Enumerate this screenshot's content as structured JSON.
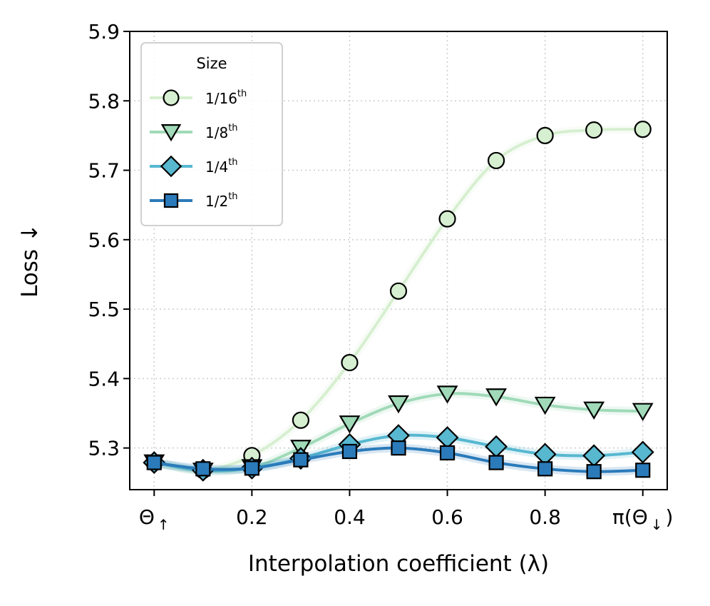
{
  "chart_data": {
    "type": "line",
    "title": "",
    "xlabel": "Interpolation coefficient (λ)",
    "ylabel": "Loss ↓",
    "xlim": [
      -0.05,
      1.05
    ],
    "ylim": [
      5.24,
      5.9
    ],
    "grid": true,
    "x": [
      0.0,
      0.1,
      0.2,
      0.3,
      0.4,
      0.5,
      0.6,
      0.7,
      0.8,
      0.9,
      1.0
    ],
    "xticks": [
      0.0,
      0.2,
      0.4,
      0.6,
      0.8,
      1.0
    ],
    "xtick_labels": [
      "Θ",
      "0.2",
      "0.4",
      "0.6",
      "0.8",
      "π(Θ"
    ],
    "xtick_subscripts": [
      "↑",
      "",
      "",
      "",
      "",
      "↓"
    ],
    "xtick_suffixes": [
      "",
      "",
      "",
      "",
      "",
      ")"
    ],
    "yticks": [
      5.3,
      5.4,
      5.5,
      5.6,
      5.7,
      5.8,
      5.9
    ],
    "ytick_labels": [
      "5.3",
      "5.4",
      "5.5",
      "5.6",
      "5.7",
      "5.8",
      "5.9"
    ],
    "legend": {
      "title": "Size",
      "location": "upper-left"
    },
    "series": [
      {
        "name": "1/16",
        "sup": "th",
        "marker": "circle",
        "color": "#d6efd0",
        "values": [
          5.279,
          5.268,
          5.289,
          5.34,
          5.423,
          5.526,
          5.63,
          5.714,
          5.75,
          5.758,
          5.759
        ]
      },
      {
        "name": "1/8",
        "sup": "th",
        "marker": "triangle-down",
        "color": "#a0dab8",
        "values": [
          5.279,
          5.267,
          5.272,
          5.3,
          5.335,
          5.364,
          5.378,
          5.374,
          5.362,
          5.355,
          5.353
        ]
      },
      {
        "name": "1/4",
        "sup": "th",
        "marker": "diamond",
        "color": "#57b8d0",
        "values": [
          5.279,
          5.268,
          5.271,
          5.285,
          5.305,
          5.318,
          5.315,
          5.302,
          5.291,
          5.289,
          5.294
        ]
      },
      {
        "name": "1/2",
        "sup": "th",
        "marker": "square",
        "color": "#2b7bba",
        "values": [
          5.279,
          5.27,
          5.271,
          5.283,
          5.295,
          5.3,
          5.293,
          5.279,
          5.27,
          5.266,
          5.268
        ]
      }
    ]
  }
}
